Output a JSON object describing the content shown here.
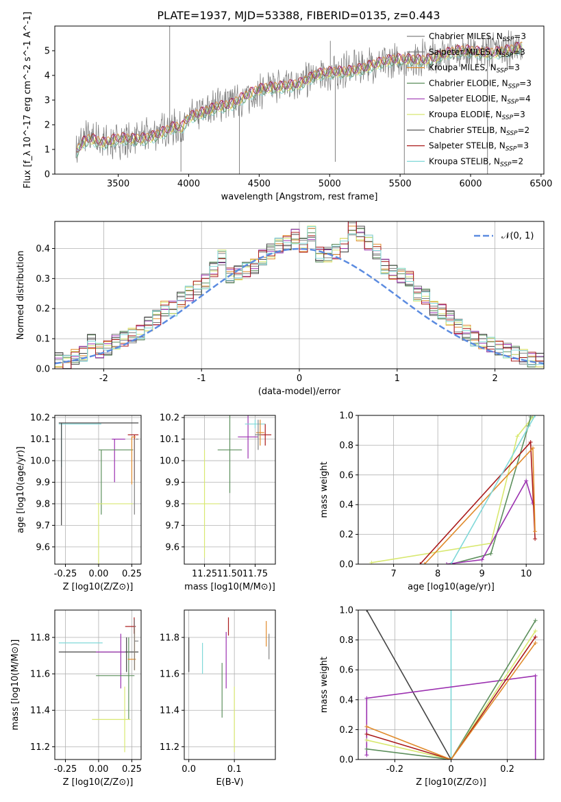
{
  "title": "PLATE=1937, MJD=53388, FIBERID=0135, z=0.443",
  "colors": {
    "chabrier_miles": "#808080",
    "salpeter_miles": "#777777",
    "kroupa_miles": "#e08a2a",
    "chabrier_elodie": "#5c8f5c",
    "salpeter_elodie": "#9b30b0",
    "kroupa_elodie": "#d8e870",
    "chabrier_stelib": "#444444",
    "salpeter_stelib": "#aa1a1a",
    "kroupa_stelib": "#7fd8d8",
    "gaussian": "#5b8be0"
  },
  "chart_data": [
    {
      "id": "spectrum",
      "type": "line",
      "title": "PLATE=1937, MJD=53388, FIBERID=0135, z=0.443",
      "xlabel": "wavelength [Angstrom, rest frame]",
      "ylabel": "Flux [f_λ 10^-17 erg cm^-2 s^-1 A^-1]",
      "xlim": [
        3050,
        6520
      ],
      "ylim": [
        0,
        6.0
      ],
      "xticks": [
        3500,
        4000,
        4500,
        5000,
        5500,
        6000,
        6500
      ],
      "yticks": [
        0,
        1,
        2,
        3,
        4,
        5
      ],
      "legend_position": "top-right",
      "legend": [
        {
          "label": "Chabrier MILES, N",
          "sub": "SSP",
          "eq": "=3",
          "color_key": "chabrier_miles"
        },
        {
          "label": "Salpeter MILES, N",
          "sub": "SSP",
          "eq": "=3",
          "color_key": "salpeter_miles"
        },
        {
          "label": "Kroupa MILES, N",
          "sub": "SSP",
          "eq": "=3",
          "color_key": "kroupa_miles"
        },
        {
          "label": "Chabrier ELODIE, N",
          "sub": "SSP",
          "eq": "=3",
          "color_key": "chabrier_elodie"
        },
        {
          "label": "Salpeter ELODIE, N",
          "sub": "SSP",
          "eq": "=4",
          "color_key": "salpeter_elodie"
        },
        {
          "label": "Kroupa ELODIE, N",
          "sub": "SSP",
          "eq": "=3",
          "color_key": "kroupa_elodie"
        },
        {
          "label": "Chabrier STELIB, N",
          "sub": "SSP",
          "eq": "=2",
          "color_key": "chabrier_stelib"
        },
        {
          "label": "Salpeter STELIB, N",
          "sub": "SSP",
          "eq": "=3",
          "color_key": "salpeter_stelib"
        },
        {
          "label": "Kroupa STELIB, N",
          "sub": "SSP",
          "eq": "=2",
          "color_key": "kroupa_stelib"
        }
      ],
      "model_anchor_x": [
        3200,
        3250,
        3300,
        3400,
        3500,
        3600,
        3700,
        3800,
        3900,
        3950,
        4000,
        4100,
        4200,
        4300,
        4400,
        4500,
        4600,
        4700,
        4800,
        4900,
        5000,
        5100,
        5200,
        5300,
        5400,
        5500,
        5600,
        5700,
        5800,
        5900,
        6000,
        6100,
        6200,
        6300,
        6370
      ],
      "model_anchor_y": [
        0.95,
        1.4,
        1.55,
        1.25,
        1.35,
        1.4,
        1.55,
        1.75,
        1.9,
        1.8,
        2.2,
        2.5,
        2.85,
        2.9,
        3.1,
        3.35,
        3.55,
        3.7,
        3.75,
        3.95,
        4.05,
        4.2,
        4.35,
        4.45,
        4.5,
        4.6,
        4.7,
        4.75,
        4.85,
        4.9,
        4.95,
        5.0,
        5.05,
        5.05,
        5.1
      ],
      "spikes": [
        {
          "x": 3865,
          "y": 6.0
        },
        {
          "x": 4360,
          "y": 0.0
        },
        {
          "x": 5040,
          "y": 0.5
        },
        {
          "x": 5530,
          "y": 0.0
        },
        {
          "x": 6120,
          "y": 0.0
        },
        {
          "x": 3945,
          "y": 0.1
        },
        {
          "x": 5005,
          "y": 5.4
        }
      ]
    },
    {
      "id": "residual-histogram",
      "type": "bar",
      "xlabel": "(data-model)/error",
      "ylabel": "Normed distribution",
      "xlim": [
        -2.5,
        2.5
      ],
      "ylim": [
        0,
        0.49
      ],
      "xticks": [
        -2,
        -1,
        0,
        1,
        2
      ],
      "yticks": [
        0.0,
        0.1,
        0.2,
        0.3,
        0.4
      ],
      "legend_position": "top-right",
      "legend": [
        {
          "label": "𝒩(0, 1)",
          "color_key": "gaussian"
        }
      ],
      "bin_width": 0.1,
      "bin_start": -2.5,
      "series_keys": [
        "chabrier_miles",
        "salpeter_miles",
        "kroupa_miles",
        "chabrier_elodie",
        "salpeter_elodie",
        "kroupa_elodie",
        "chabrier_stelib",
        "salpeter_stelib",
        "kroupa_stelib"
      ],
      "bin_centers_used_for_shape": "normal",
      "approx_bins": [
        0.03,
        0.02,
        0.04,
        0.05,
        0.09,
        0.06,
        0.07,
        0.09,
        0.1,
        0.11,
        0.12,
        0.15,
        0.17,
        0.2,
        0.2,
        0.23,
        0.25,
        0.27,
        0.29,
        0.33,
        0.37,
        0.31,
        0.32,
        0.33,
        0.34,
        0.37,
        0.39,
        0.41,
        0.42,
        0.44,
        0.41,
        0.45,
        0.38,
        0.38,
        0.39,
        0.41,
        0.47,
        0.45,
        0.42,
        0.39,
        0.34,
        0.32,
        0.31,
        0.3,
        0.25,
        0.24,
        0.2,
        0.19,
        0.17,
        0.14,
        0.12,
        0.1,
        0.09,
        0.08,
        0.07,
        0.06,
        0.05,
        0.04,
        0.03,
        0.03
      ]
    },
    {
      "id": "age-vs-metallicity",
      "type": "scatter",
      "xlabel": "Z [log10(Z/Z⊙)]",
      "ylabel": "age [log10(age/yr)]",
      "xlim": [
        -0.33,
        0.32
      ],
      "ylim": [
        9.52,
        10.21
      ],
      "xticks": [
        -0.25,
        0.0,
        0.25
      ],
      "yticks": [
        9.6,
        9.7,
        9.8,
        9.9,
        10.0,
        10.1,
        10.2
      ]
    },
    {
      "id": "age-vs-mass",
      "type": "scatter",
      "xlabel": "mass [log10(M/M⊙)]",
      "xlim": [
        11.05,
        11.95
      ],
      "ylim": [
        9.52,
        10.21
      ],
      "xticks": [
        11.25,
        11.5,
        11.75
      ],
      "yticks": [
        9.6,
        9.7,
        9.8,
        9.9,
        10.0,
        10.1,
        10.2
      ]
    },
    {
      "id": "mass-weight-vs-age",
      "type": "line",
      "xlabel": "age [log10(age/yr)]",
      "ylabel": "mass weight",
      "xlim": [
        6.2,
        10.4
      ],
      "ylim": [
        0.0,
        1.0
      ],
      "xticks": [
        7,
        8,
        9,
        10
      ],
      "yticks": [
        0.0,
        0.2,
        0.4,
        0.6,
        0.8,
        1.0
      ]
    },
    {
      "id": "mass-vs-metallicity",
      "type": "scatter",
      "xlabel": "Z [log10(Z/Z⊙)]",
      "ylabel": "mass [log10(M/M⊙)]",
      "xlim": [
        -0.33,
        0.32
      ],
      "ylim": [
        11.13,
        11.95
      ],
      "xticks": [
        -0.25,
        0.0,
        0.25
      ],
      "yticks": [
        11.2,
        11.4,
        11.6,
        11.8
      ]
    },
    {
      "id": "mass-vs-ebv",
      "type": "scatter",
      "xlabel": "E(B-V)",
      "xlim": [
        -0.01,
        0.19
      ],
      "ylim": [
        11.13,
        11.95
      ],
      "xticks": [
        0.0,
        0.1
      ],
      "yticks": [
        11.2,
        11.4,
        11.6,
        11.8
      ]
    },
    {
      "id": "mass-weight-vs-metallicity",
      "type": "line",
      "xlabel": "Z [log10(Z/Z⊙)]",
      "ylabel": "mass weight",
      "xlim": [
        -0.33,
        0.33
      ],
      "ylim": [
        0.0,
        1.0
      ],
      "xticks": [
        -0.2,
        0.0,
        0.2
      ],
      "yticks": [
        0.0,
        0.2,
        0.4,
        0.6,
        0.8,
        1.0
      ]
    }
  ]
}
